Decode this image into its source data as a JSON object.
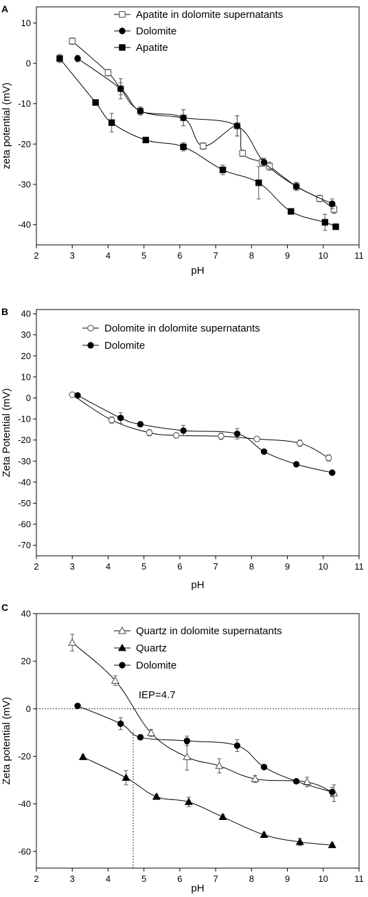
{
  "chart_data": [
    {
      "type": "line",
      "panel_label": "A",
      "xlabel": "pH",
      "ylabel": "zeta potential (mV)",
      "xlim": [
        2,
        11
      ],
      "ylim": [
        -45,
        14
      ],
      "xticks": [
        2,
        3,
        4,
        5,
        6,
        7,
        8,
        9,
        10,
        11
      ],
      "yticks": [
        10,
        0,
        -10,
        -20,
        -30,
        -40
      ],
      "legend_position": "top-right",
      "series": [
        {
          "name": "Apatite in dolomite supernatants",
          "marker": "square-open",
          "x": [
            3.0,
            4.0,
            4.35,
            4.9,
            6.1,
            6.65,
            7.6,
            7.75,
            8.3,
            8.5,
            9.25,
            9.9,
            10.3
          ],
          "y": [
            5.5,
            -2.3,
            -6.3,
            -11.8,
            -13.5,
            -20.5,
            -15.5,
            -22.3,
            -24.5,
            -25.5,
            -30.5,
            -33.5,
            -36.2
          ],
          "err": [
            0.8,
            0.8,
            1.5,
            1.0,
            2.0,
            0.8,
            2.5,
            0.8,
            1.0,
            1.0,
            1.0,
            0.8,
            1.0
          ]
        },
        {
          "name": "Dolomite",
          "marker": "circle-filled",
          "x": [
            3.15,
            4.35,
            4.9,
            6.1,
            7.6,
            8.35,
            9.25,
            10.25
          ],
          "y": [
            1.2,
            -6.3,
            -11.8,
            -13.5,
            -15.5,
            -24.5,
            -30.5,
            -34.8
          ],
          "err": [
            0.8,
            2.5,
            1.0,
            2.0,
            2.5,
            1.0,
            1.0,
            1.2
          ]
        },
        {
          "name": "Apatite",
          "marker": "square-filled",
          "x": [
            2.65,
            3.65,
            4.1,
            5.05,
            6.1,
            7.2,
            8.2,
            9.1,
            10.05,
            10.35
          ],
          "y": [
            1.2,
            -9.7,
            -14.7,
            -19.0,
            -20.7,
            -26.4,
            -29.6,
            -36.7,
            -39.4,
            -40.5
          ],
          "err": [
            1.0,
            0.5,
            2.3,
            0.6,
            1.0,
            1.2,
            4.0,
            0.6,
            2.0,
            0.6
          ]
        }
      ]
    },
    {
      "type": "line",
      "panel_label": "B",
      "xlabel": "pH",
      "ylabel": "Zeta Potential (mV)",
      "xlim": [
        2,
        11
      ],
      "ylim": [
        -75,
        42
      ],
      "xticks": [
        2,
        3,
        4,
        5,
        6,
        7,
        8,
        9,
        10,
        11
      ],
      "yticks": [
        40,
        30,
        20,
        10,
        0,
        -10,
        -20,
        -30,
        -40,
        -50,
        -60,
        -70
      ],
      "legend_position": "top-right",
      "series": [
        {
          "name": "Dolomite in dolomite supernatants",
          "marker": "circle-open",
          "x": [
            3.0,
            4.1,
            5.15,
            5.9,
            7.15,
            8.15,
            9.35,
            10.15
          ],
          "y": [
            1.5,
            -10.5,
            -16.5,
            -17.8,
            -18.2,
            -19.5,
            -21.5,
            -28.5
          ],
          "err": [
            1.0,
            1.5,
            1.5,
            1.2,
            1.5,
            1.2,
            1.5,
            1.5
          ]
        },
        {
          "name": "Dolomite",
          "marker": "circle-filled",
          "x": [
            3.15,
            4.35,
            4.9,
            6.1,
            7.6,
            8.35,
            9.25,
            10.25
          ],
          "y": [
            1.2,
            -9.5,
            -12.5,
            -15.5,
            -17.0,
            -25.5,
            -31.5,
            -35.5
          ],
          "err": [
            1.0,
            2.5,
            1.0,
            2.5,
            2.5,
            1.0,
            1.0,
            1.0
          ]
        }
      ]
    },
    {
      "type": "line",
      "panel_label": "C",
      "xlabel": "pH",
      "ylabel": "Zeta potential (mV)",
      "xlim": [
        2,
        11
      ],
      "ylim": [
        -67,
        40
      ],
      "xticks": [
        2,
        3,
        4,
        5,
        6,
        7,
        8,
        9,
        10,
        11
      ],
      "yticks": [
        40,
        20,
        0,
        -20,
        -40,
        -60
      ],
      "legend_position": "top-right",
      "annotation": {
        "text": "IEP=4.7",
        "iep": 4.7
      },
      "series": [
        {
          "name": "Quartz in dolomite supernatants",
          "marker": "triangle-open",
          "x": [
            3.0,
            4.2,
            5.2,
            6.2,
            7.1,
            8.1,
            9.55,
            10.3
          ],
          "y": [
            27.8,
            11.8,
            -10.2,
            -20.3,
            -24.0,
            -29.5,
            -30.8,
            -35.5
          ],
          "err": [
            3.5,
            2.0,
            1.5,
            5.5,
            3.0,
            1.5,
            2.0,
            3.5
          ]
        },
        {
          "name": "Quartz",
          "marker": "triangle-filled",
          "x": [
            3.3,
            4.5,
            5.35,
            6.25,
            7.2,
            8.35,
            9.35,
            10.25
          ],
          "y": [
            -20.3,
            -29.0,
            -37.0,
            -39.2,
            -45.5,
            -53.0,
            -56.0,
            -57.3
          ],
          "err": [
            1.0,
            3.0,
            1.0,
            2.0,
            1.0,
            1.0,
            1.5,
            1.0
          ]
        },
        {
          "name": "Dolomite",
          "marker": "circle-filled",
          "x": [
            3.15,
            4.35,
            4.9,
            6.2,
            7.6,
            8.35,
            9.25,
            10.25
          ],
          "y": [
            1.2,
            -6.3,
            -12.0,
            -13.5,
            -15.5,
            -24.5,
            -30.5,
            -35.0
          ],
          "err": [
            0.8,
            2.5,
            1.0,
            2.0,
            2.5,
            1.0,
            1.0,
            2.0
          ]
        }
      ]
    }
  ]
}
